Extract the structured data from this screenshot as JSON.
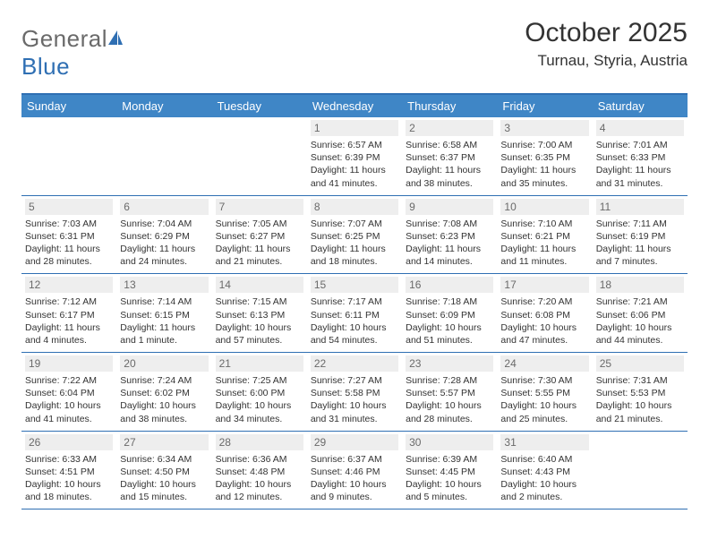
{
  "brand": {
    "text1": "General",
    "text2": "Blue"
  },
  "title": "October 2025",
  "location": "Turnau, Styria, Austria",
  "colors": {
    "header_bar": "#3f86c6",
    "border": "#2f6fb3",
    "daynum_bg": "#eeeeee",
    "daynum_fg": "#6a6a6a",
    "text": "#333333",
    "logo_gray": "#6a6a6a",
    "logo_blue": "#2f6fb3",
    "background": "#ffffff"
  },
  "day_labels": [
    "Sunday",
    "Monday",
    "Tuesday",
    "Wednesday",
    "Thursday",
    "Friday",
    "Saturday"
  ],
  "weeks": [
    [
      {
        "empty": true
      },
      {
        "empty": true
      },
      {
        "empty": true
      },
      {
        "n": "1",
        "sunrise": "6:57 AM",
        "sunset": "6:39 PM",
        "daylight": "11 hours and 41 minutes."
      },
      {
        "n": "2",
        "sunrise": "6:58 AM",
        "sunset": "6:37 PM",
        "daylight": "11 hours and 38 minutes."
      },
      {
        "n": "3",
        "sunrise": "7:00 AM",
        "sunset": "6:35 PM",
        "daylight": "11 hours and 35 minutes."
      },
      {
        "n": "4",
        "sunrise": "7:01 AM",
        "sunset": "6:33 PM",
        "daylight": "11 hours and 31 minutes."
      }
    ],
    [
      {
        "n": "5",
        "sunrise": "7:03 AM",
        "sunset": "6:31 PM",
        "daylight": "11 hours and 28 minutes."
      },
      {
        "n": "6",
        "sunrise": "7:04 AM",
        "sunset": "6:29 PM",
        "daylight": "11 hours and 24 minutes."
      },
      {
        "n": "7",
        "sunrise": "7:05 AM",
        "sunset": "6:27 PM",
        "daylight": "11 hours and 21 minutes."
      },
      {
        "n": "8",
        "sunrise": "7:07 AM",
        "sunset": "6:25 PM",
        "daylight": "11 hours and 18 minutes."
      },
      {
        "n": "9",
        "sunrise": "7:08 AM",
        "sunset": "6:23 PM",
        "daylight": "11 hours and 14 minutes."
      },
      {
        "n": "10",
        "sunrise": "7:10 AM",
        "sunset": "6:21 PM",
        "daylight": "11 hours and 11 minutes."
      },
      {
        "n": "11",
        "sunrise": "7:11 AM",
        "sunset": "6:19 PM",
        "daylight": "11 hours and 7 minutes."
      }
    ],
    [
      {
        "n": "12",
        "sunrise": "7:12 AM",
        "sunset": "6:17 PM",
        "daylight": "11 hours and 4 minutes."
      },
      {
        "n": "13",
        "sunrise": "7:14 AM",
        "sunset": "6:15 PM",
        "daylight": "11 hours and 1 minute."
      },
      {
        "n": "14",
        "sunrise": "7:15 AM",
        "sunset": "6:13 PM",
        "daylight": "10 hours and 57 minutes."
      },
      {
        "n": "15",
        "sunrise": "7:17 AM",
        "sunset": "6:11 PM",
        "daylight": "10 hours and 54 minutes."
      },
      {
        "n": "16",
        "sunrise": "7:18 AM",
        "sunset": "6:09 PM",
        "daylight": "10 hours and 51 minutes."
      },
      {
        "n": "17",
        "sunrise": "7:20 AM",
        "sunset": "6:08 PM",
        "daylight": "10 hours and 47 minutes."
      },
      {
        "n": "18",
        "sunrise": "7:21 AM",
        "sunset": "6:06 PM",
        "daylight": "10 hours and 44 minutes."
      }
    ],
    [
      {
        "n": "19",
        "sunrise": "7:22 AM",
        "sunset": "6:04 PM",
        "daylight": "10 hours and 41 minutes."
      },
      {
        "n": "20",
        "sunrise": "7:24 AM",
        "sunset": "6:02 PM",
        "daylight": "10 hours and 38 minutes."
      },
      {
        "n": "21",
        "sunrise": "7:25 AM",
        "sunset": "6:00 PM",
        "daylight": "10 hours and 34 minutes."
      },
      {
        "n": "22",
        "sunrise": "7:27 AM",
        "sunset": "5:58 PM",
        "daylight": "10 hours and 31 minutes."
      },
      {
        "n": "23",
        "sunrise": "7:28 AM",
        "sunset": "5:57 PM",
        "daylight": "10 hours and 28 minutes."
      },
      {
        "n": "24",
        "sunrise": "7:30 AM",
        "sunset": "5:55 PM",
        "daylight": "10 hours and 25 minutes."
      },
      {
        "n": "25",
        "sunrise": "7:31 AM",
        "sunset": "5:53 PM",
        "daylight": "10 hours and 21 minutes."
      }
    ],
    [
      {
        "n": "26",
        "sunrise": "6:33 AM",
        "sunset": "4:51 PM",
        "daylight": "10 hours and 18 minutes."
      },
      {
        "n": "27",
        "sunrise": "6:34 AM",
        "sunset": "4:50 PM",
        "daylight": "10 hours and 15 minutes."
      },
      {
        "n": "28",
        "sunrise": "6:36 AM",
        "sunset": "4:48 PM",
        "daylight": "10 hours and 12 minutes."
      },
      {
        "n": "29",
        "sunrise": "6:37 AM",
        "sunset": "4:46 PM",
        "daylight": "10 hours and 9 minutes."
      },
      {
        "n": "30",
        "sunrise": "6:39 AM",
        "sunset": "4:45 PM",
        "daylight": "10 hours and 5 minutes."
      },
      {
        "n": "31",
        "sunrise": "6:40 AM",
        "sunset": "4:43 PM",
        "daylight": "10 hours and 2 minutes."
      },
      {
        "empty": true
      }
    ]
  ],
  "labels": {
    "sunrise": "Sunrise:",
    "sunset": "Sunset:",
    "daylight": "Daylight:"
  }
}
